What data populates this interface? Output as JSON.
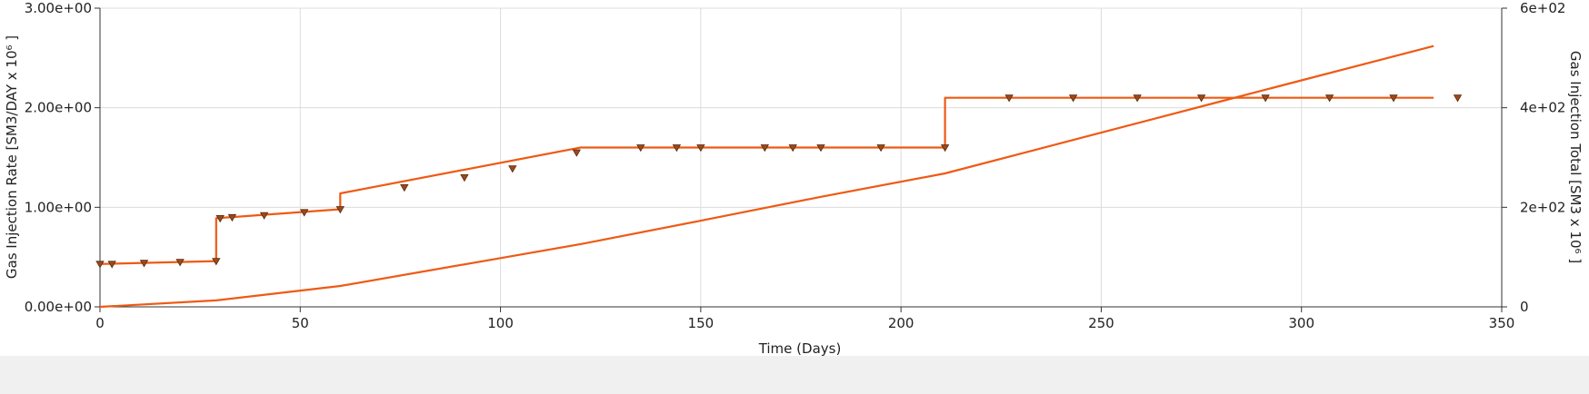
{
  "chart_data": {
    "type": "line",
    "title": "",
    "xlabel": "Time (Days)",
    "ylabel_left": "Gas Injection Rate [SM3/DAY x 10⁶ ]",
    "ylabel_right": "Gas Injection Total [SM3 x 10⁶ ]",
    "xlim": [
      0,
      350
    ],
    "ylim_left": [
      0,
      3
    ],
    "ylim_right": [
      0,
      600
    ],
    "x_ticks": [
      "0",
      "50",
      "100",
      "150",
      "200",
      "250",
      "300",
      "350"
    ],
    "y_ticks_left": [
      "0.00e+00",
      "1.00e+00",
      "2.00e+00",
      "3.00e+00"
    ],
    "y_ticks_right": [
      "0",
      "2e+02",
      "4e+02",
      "6e+02"
    ],
    "grid": true,
    "line_color": "#ee5a14",
    "series": [
      {
        "axis": "left",
        "style": "step",
        "x": [
          0,
          29,
          29,
          60,
          60,
          120,
          211,
          211,
          333
        ],
        "y": [
          0.43,
          0.46,
          0.89,
          0.98,
          1.14,
          1.6,
          1.6,
          2.1,
          2.1
        ],
        "markers": {
          "x": [
            0,
            3,
            11,
            20,
            29,
            30,
            33,
            41,
            51,
            60,
            76,
            91,
            103,
            119,
            135,
            144,
            150,
            166,
            173,
            180,
            195,
            211,
            227,
            243,
            259,
            275,
            291,
            307,
            323,
            339
          ],
          "y": [
            0.43,
            0.43,
            0.44,
            0.45,
            0.46,
            0.89,
            0.9,
            0.92,
            0.95,
            0.98,
            1.2,
            1.3,
            1.39,
            1.55,
            1.6,
            1.6,
            1.6,
            1.6,
            1.6,
            1.6,
            1.6,
            1.6,
            2.1,
            2.1,
            2.1,
            2.1,
            2.1,
            2.1,
            2.1,
            2.1
          ]
        }
      },
      {
        "axis": "right",
        "style": "line",
        "x": [
          0,
          29,
          60,
          100,
          120,
          150,
          180,
          211,
          250,
          280,
          300,
          333
        ],
        "y": [
          0,
          13,
          42,
          98,
          126,
          173,
          221,
          268,
          350,
          413,
          455,
          524
        ]
      }
    ]
  }
}
